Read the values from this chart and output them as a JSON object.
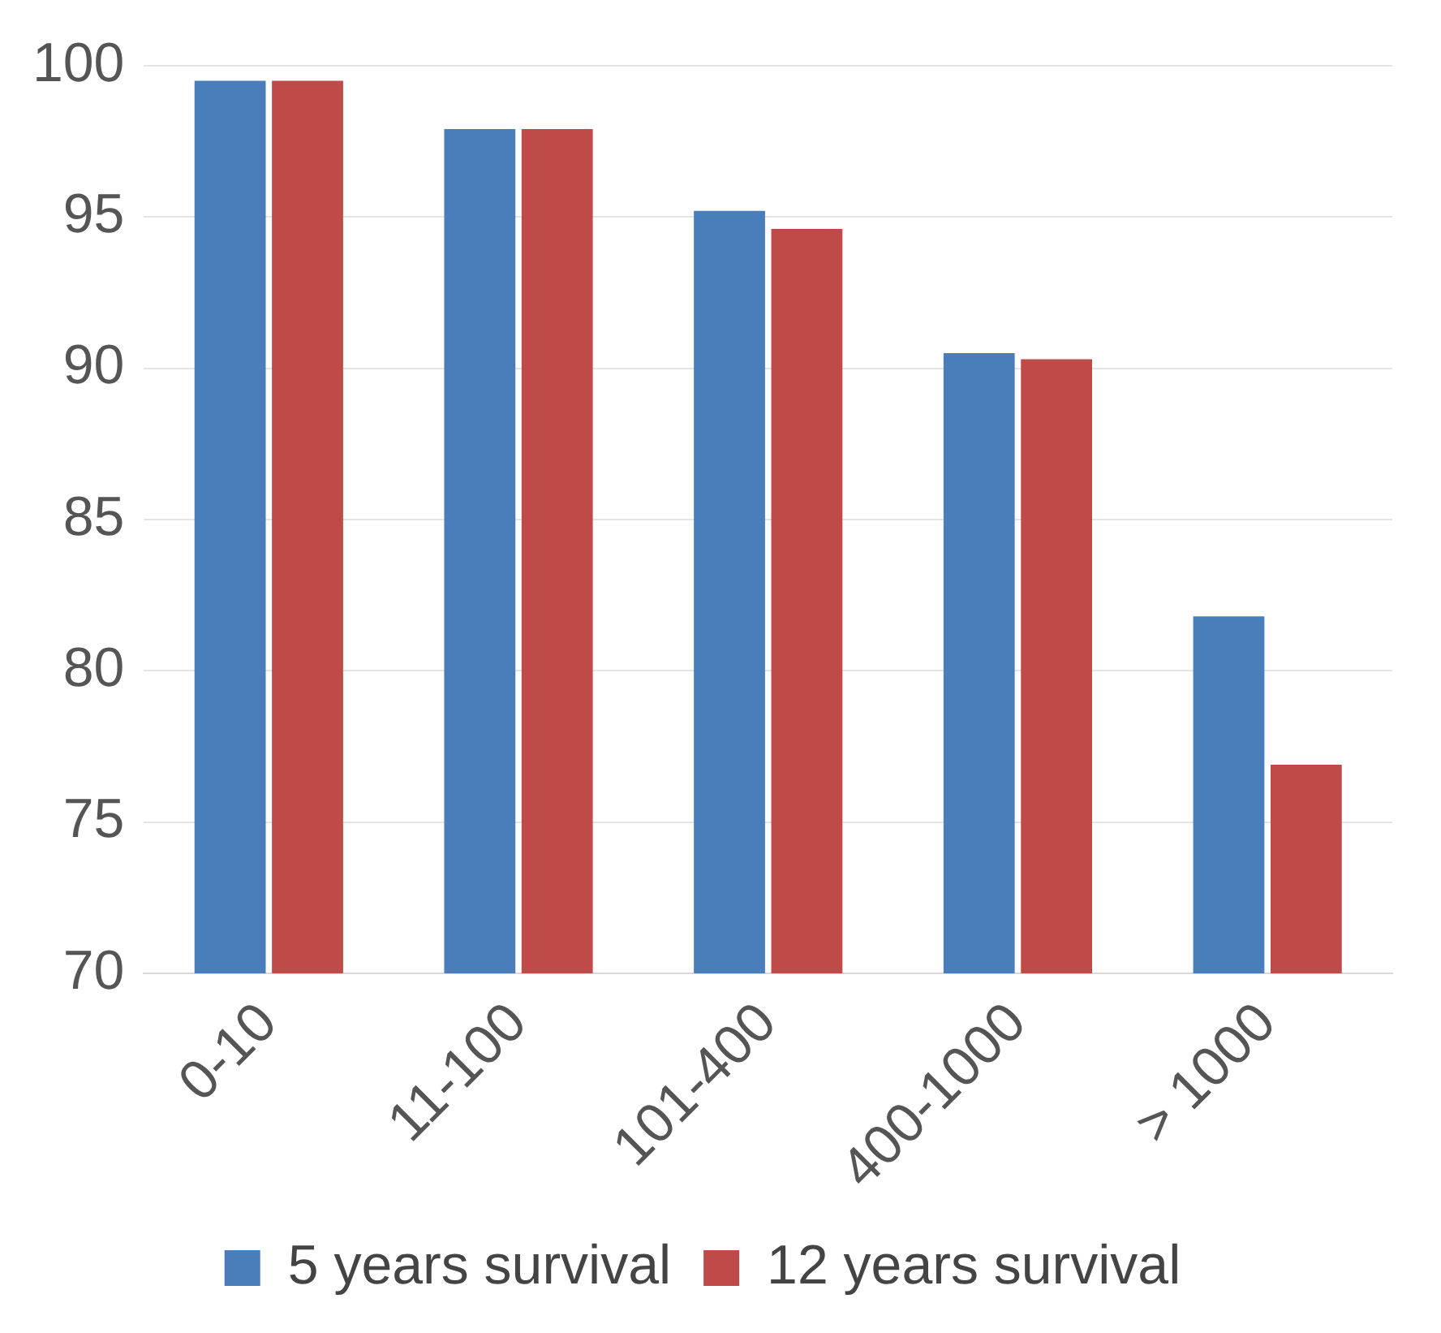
{
  "chart_data": {
    "type": "bar",
    "categories": [
      "0-10",
      "11-100",
      "101-400",
      "400-1000",
      "> 1000"
    ],
    "series": [
      {
        "name": "5 years survival",
        "color": "#4a7ebb",
        "values": [
          99.5,
          97.9,
          95.2,
          90.5,
          81.8
        ]
      },
      {
        "name": "12 years survival",
        "color": "#be4b48",
        "values": [
          99.5,
          97.9,
          94.6,
          90.3,
          76.9
        ]
      }
    ],
    "ylim": [
      70,
      100
    ],
    "yticks": [
      70,
      75,
      80,
      85,
      90,
      95,
      100
    ],
    "grid": "y",
    "legend": "bottom"
  }
}
